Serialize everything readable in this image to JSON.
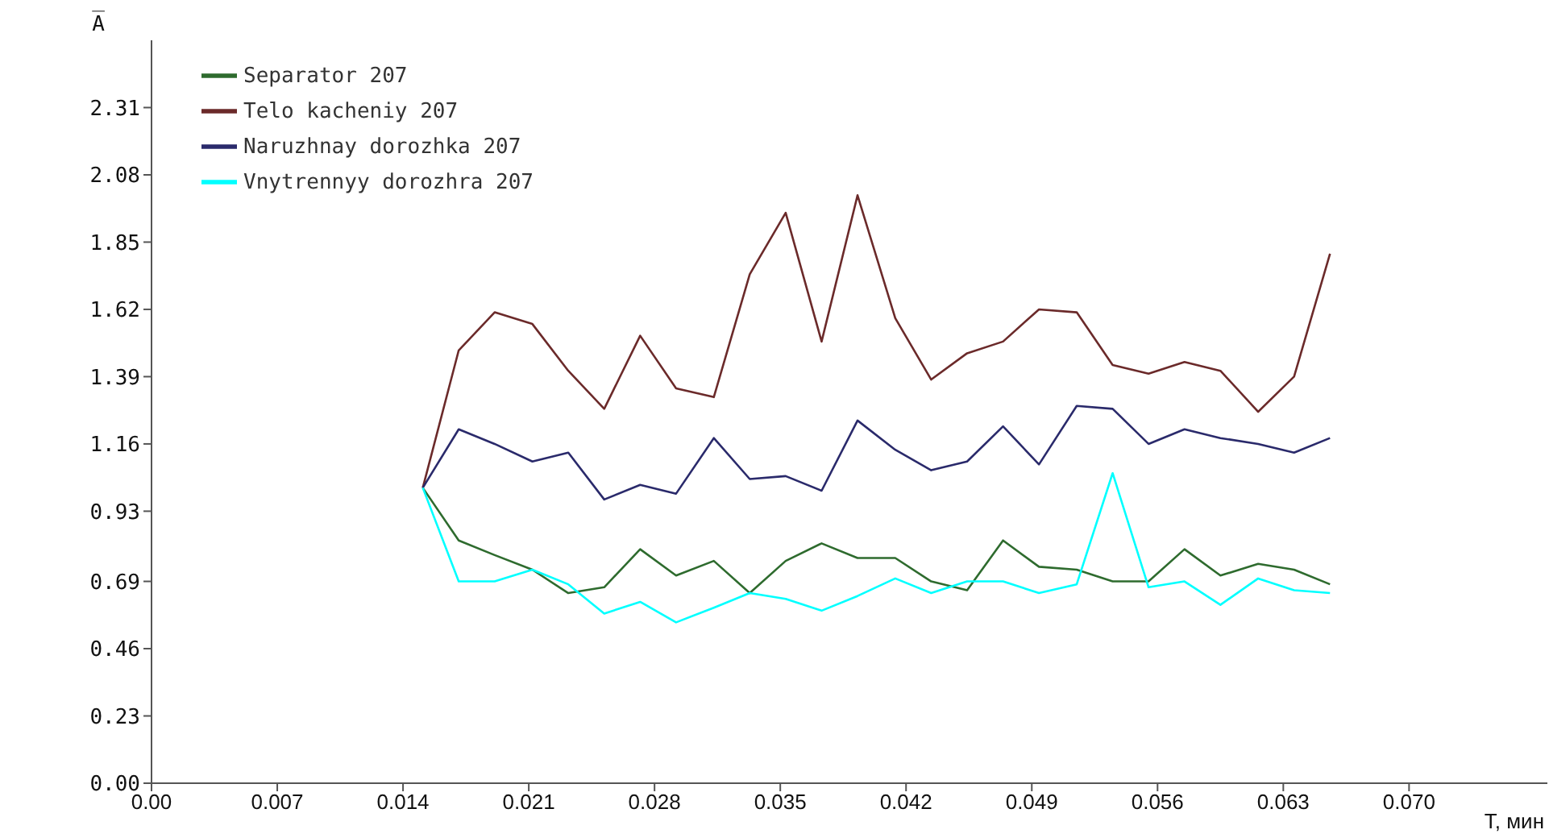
{
  "chart_data": {
    "type": "line",
    "xlabel": "T, мин",
    "ylabel": "A̅",
    "legend": "top left",
    "marker": "none",
    "line_style": "solid",
    "grid": false,
    "x": [
      0.0151,
      0.0171,
      0.0191,
      0.0212,
      0.0232,
      0.0252,
      0.0272,
      0.0292,
      0.0313,
      0.0333,
      0.0353,
      0.0373,
      0.0393,
      0.0414,
      0.0434,
      0.0454,
      0.0474,
      0.0494,
      0.0515,
      0.0535,
      0.0555,
      0.0575,
      0.0595,
      0.0616,
      0.0636,
      0.0656
    ],
    "xlim": [
      0,
      0.0777
    ],
    "xticks": [
      {
        "value": 0,
        "label": "0.00"
      },
      0.007,
      0.014,
      0.021,
      0.028,
      0.035,
      0.042,
      0.049,
      0.056,
      0.063,
      {
        "value": 0.07,
        "label": "0.070"
      }
    ],
    "ylim": [
      0,
      2.54
    ],
    "yticks": [
      {
        "value": 0,
        "label": "0.00"
      },
      0.23,
      0.46,
      0.69,
      0.93,
      1.16,
      1.39,
      1.62,
      1.85,
      2.08,
      2.31
    ],
    "series": [
      {
        "name": "Separator 207",
        "color": "#2e6b2e",
        "values": [
          1.01,
          0.83,
          0.78,
          0.73,
          0.65,
          0.67,
          0.8,
          0.71,
          0.76,
          0.65,
          0.76,
          0.82,
          0.77,
          0.77,
          0.69,
          0.66,
          0.83,
          0.74,
          0.73,
          0.69,
          0.69,
          0.8,
          0.71,
          0.75,
          0.73,
          0.68
        ]
      },
      {
        "name": "Telo kacheniy 207",
        "color": "#6b2a2a",
        "values": [
          1.01,
          1.48,
          1.61,
          1.57,
          1.41,
          1.28,
          1.53,
          1.35,
          1.32,
          1.74,
          1.95,
          1.51,
          2.01,
          1.59,
          1.38,
          1.47,
          1.51,
          1.62,
          1.61,
          1.43,
          1.4,
          1.44,
          1.41,
          1.27,
          1.39,
          1.81
        ]
      },
      {
        "name": "Naruzhnay dorozhka 207",
        "color": "#2a2a6b",
        "values": [
          1.01,
          1.21,
          1.16,
          1.1,
          1.13,
          0.97,
          1.02,
          0.99,
          1.18,
          1.04,
          1.05,
          1.0,
          1.24,
          1.14,
          1.07,
          1.1,
          1.22,
          1.09,
          1.29,
          1.28,
          1.16,
          1.21,
          1.18,
          1.16,
          1.13,
          1.18
        ]
      },
      {
        "name": "Vnytrennyy dorozhra 207",
        "color": "#00ffff",
        "values": [
          1.01,
          0.69,
          0.69,
          0.73,
          0.68,
          0.58,
          0.62,
          0.55,
          0.6,
          0.65,
          0.63,
          0.59,
          0.64,
          0.7,
          0.65,
          0.69,
          0.69,
          0.65,
          0.68,
          1.06,
          0.67,
          0.69,
          0.61,
          0.7,
          0.66,
          0.65
        ]
      }
    ]
  }
}
